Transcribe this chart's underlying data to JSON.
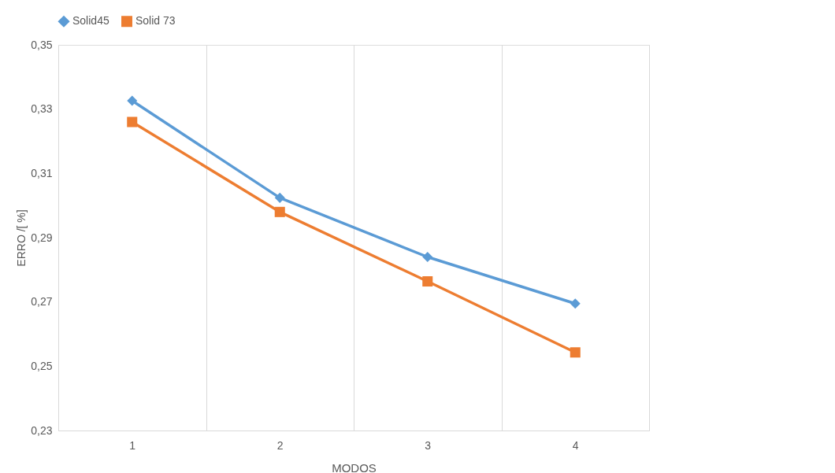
{
  "chart_data": {
    "type": "line",
    "xlabel": "MODOS",
    "ylabel": "ERRO /[ %]",
    "categories": [
      "1",
      "2",
      "3",
      "4"
    ],
    "series": [
      {
        "name": "Solid45",
        "color": "#5b9bd5",
        "marker": "diamond",
        "values": [
          0.3326,
          0.3024,
          0.284,
          0.2695
        ]
      },
      {
        "name": "Solid 73",
        "color": "#ed7d31",
        "marker": "square",
        "values": [
          0.326,
          0.298,
          0.2764,
          0.2543
        ]
      }
    ],
    "ylim": [
      0.23,
      0.35
    ],
    "yticks": [
      {
        "value": 0.23,
        "label": "0,23"
      },
      {
        "value": 0.25,
        "label": "0,25"
      },
      {
        "value": 0.27,
        "label": "0,27"
      },
      {
        "value": 0.29,
        "label": "0,29"
      },
      {
        "value": 0.31,
        "label": "0,31"
      },
      {
        "value": 0.33,
        "label": "0,33"
      },
      {
        "value": 0.35,
        "label": "0,35"
      }
    ],
    "grid": "x",
    "legend": "top",
    "line_style": "solid"
  }
}
